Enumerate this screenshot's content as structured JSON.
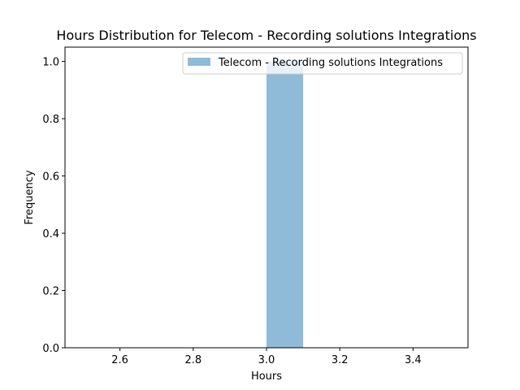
{
  "chart_data": {
    "type": "bar",
    "title": "Hours Distribution for Telecom - Recording solutions Integrations",
    "xlabel": "Hours",
    "ylabel": "Frequency",
    "xlim": [
      2.45,
      3.55
    ],
    "ylim": [
      0,
      1.05
    ],
    "x_ticks": [
      2.6,
      2.8,
      3.0,
      3.2,
      3.4
    ],
    "y_ticks": [
      0.0,
      0.2,
      0.4,
      0.6,
      0.8,
      1.0
    ],
    "x_tick_labels": [
      "2.6",
      "2.8",
      "3.0",
      "3.2",
      "3.4"
    ],
    "y_tick_labels": [
      "0.0",
      "0.2",
      "0.4",
      "0.6",
      "0.8",
      "1.0"
    ],
    "grid": false,
    "legend_position": "top-right",
    "series": [
      {
        "name": "Telecom - Recording solutions Integrations",
        "color": "#1f77b4",
        "opacity": 0.5,
        "bins": [
          {
            "x0": 3.0,
            "x1": 3.1,
            "value": 1
          }
        ]
      }
    ]
  }
}
